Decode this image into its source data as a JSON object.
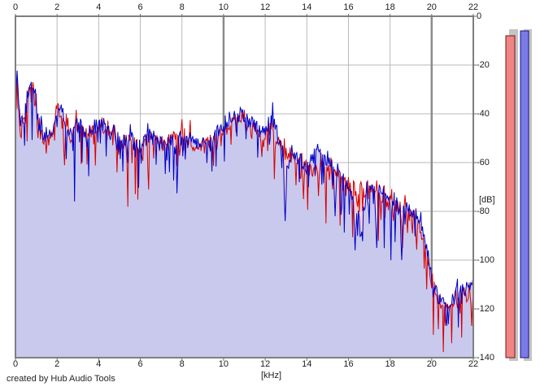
{
  "app": {
    "credit": "created by Hub Audio Tools"
  },
  "colors": {
    "background": "#ffffff",
    "grid_minor": "#b9b9b9",
    "grid_major": "#8b8b8b",
    "plot_border": "#7f7f7f",
    "tick_stub": "#6f6f6f",
    "text": "#1c1c1c",
    "red_line": "#d90000",
    "red_fill": "#f3cdd0",
    "blue_line": "#0000c8",
    "blue_fill": "#c9c9ed",
    "meter_track": "#c4c4c4",
    "meter_red_fill": "#ef8585",
    "meter_red_border": "#7a1212",
    "meter_blue_fill": "#7b7be8",
    "meter_blue_border": "#15157d"
  },
  "chart_data": {
    "type": "area",
    "title": "",
    "xlabel": "[kHz]",
    "ylabel": "[dB]",
    "xlim": [
      0,
      22
    ],
    "ylim": [
      -140,
      0
    ],
    "grid": true,
    "x_ticks": [
      0,
      2,
      4,
      6,
      8,
      10,
      12,
      14,
      16,
      18,
      20,
      22
    ],
    "x_major_gridlines": [
      10,
      20
    ],
    "y_ticks": [
      0,
      -20,
      -40,
      -60,
      -80,
      -100,
      -120,
      -140
    ],
    "legend_position": "none",
    "series": [
      {
        "name": "red-spectrum-trace",
        "color_key": "red",
        "envelope_khz_db": [
          [
            0,
            -42
          ],
          [
            0.08,
            -27
          ],
          [
            0.25,
            -48
          ],
          [
            0.45,
            -42
          ],
          [
            0.6,
            -36
          ],
          [
            0.75,
            -30
          ],
          [
            0.9,
            -33
          ],
          [
            1.1,
            -46
          ],
          [
            1.4,
            -50
          ],
          [
            1.7,
            -49
          ],
          [
            2.0,
            -38
          ],
          [
            2.2,
            -42
          ],
          [
            2.45,
            -48
          ],
          [
            2.7,
            -50
          ],
          [
            3.0,
            -44
          ],
          [
            3.3,
            -49
          ],
          [
            3.7,
            -47
          ],
          [
            4.1,
            -45
          ],
          [
            4.5,
            -49
          ],
          [
            5.0,
            -52
          ],
          [
            5.5,
            -51
          ],
          [
            6.0,
            -53
          ],
          [
            6.5,
            -50
          ],
          [
            7.0,
            -53
          ],
          [
            7.5,
            -51
          ],
          [
            8.0,
            -48
          ],
          [
            8.5,
            -52
          ],
          [
            9.0,
            -53
          ],
          [
            9.5,
            -51
          ],
          [
            9.9,
            -48
          ],
          [
            10.3,
            -45
          ],
          [
            10.6,
            -43
          ],
          [
            11.0,
            -44
          ],
          [
            11.5,
            -47
          ],
          [
            12.0,
            -49
          ],
          [
            12.35,
            -46
          ],
          [
            12.7,
            -53
          ],
          [
            13.0,
            -57
          ],
          [
            13.3,
            -58
          ],
          [
            13.6,
            -60
          ],
          [
            14.0,
            -64
          ],
          [
            14.4,
            -63
          ],
          [
            14.75,
            -62
          ],
          [
            15.1,
            -64
          ],
          [
            15.5,
            -65
          ],
          [
            15.9,
            -68
          ],
          [
            16.3,
            -71
          ],
          [
            16.6,
            -71
          ],
          [
            16.9,
            -71
          ],
          [
            17.2,
            -72
          ],
          [
            17.6,
            -74
          ],
          [
            18.0,
            -76
          ],
          [
            18.4,
            -79
          ],
          [
            18.8,
            -80
          ],
          [
            19.2,
            -83
          ],
          [
            19.5,
            -88
          ],
          [
            19.75,
            -97
          ],
          [
            20.0,
            -109
          ],
          [
            20.3,
            -116
          ],
          [
            20.6,
            -120
          ],
          [
            20.9,
            -119
          ],
          [
            21.2,
            -115
          ],
          [
            21.5,
            -112
          ],
          [
            21.8,
            -116
          ],
          [
            22,
            -110
          ]
        ],
        "deep_dips_khz_db": [
          [
            13.85,
            -75
          ],
          [
            18.6,
            -95
          ],
          [
            21.9,
            -127
          ]
        ],
        "noise_seed": 5
      },
      {
        "name": "blue-spectrum-trace",
        "color_key": "blue",
        "envelope_khz_db": [
          [
            0,
            -40
          ],
          [
            0.08,
            -23
          ],
          [
            0.25,
            -46
          ],
          [
            0.45,
            -40
          ],
          [
            0.6,
            -33
          ],
          [
            0.75,
            -26
          ],
          [
            0.9,
            -31
          ],
          [
            1.1,
            -44
          ],
          [
            1.4,
            -49
          ],
          [
            1.7,
            -47
          ],
          [
            1.95,
            -44
          ],
          [
            2.2,
            -37
          ],
          [
            2.45,
            -47
          ],
          [
            2.7,
            -49
          ],
          [
            3.0,
            -43
          ],
          [
            3.3,
            -48
          ],
          [
            3.7,
            -46
          ],
          [
            4.1,
            -43
          ],
          [
            4.5,
            -48
          ],
          [
            5.0,
            -51
          ],
          [
            5.5,
            -50
          ],
          [
            6.0,
            -52
          ],
          [
            6.5,
            -49
          ],
          [
            7.0,
            -52
          ],
          [
            7.5,
            -51
          ],
          [
            8.0,
            -50
          ],
          [
            8.5,
            -52
          ],
          [
            9.0,
            -52
          ],
          [
            9.5,
            -50
          ],
          [
            9.9,
            -46
          ],
          [
            10.3,
            -42
          ],
          [
            10.6,
            -40
          ],
          [
            11.0,
            -41
          ],
          [
            11.5,
            -45
          ],
          [
            12.0,
            -47
          ],
          [
            12.35,
            -43
          ],
          [
            12.7,
            -51
          ],
          [
            13.0,
            -60
          ],
          [
            13.3,
            -60
          ],
          [
            13.6,
            -58
          ],
          [
            14.0,
            -62
          ],
          [
            14.4,
            -56
          ],
          [
            14.75,
            -56
          ],
          [
            15.1,
            -61
          ],
          [
            15.5,
            -63
          ],
          [
            15.9,
            -67
          ],
          [
            16.3,
            -80
          ],
          [
            16.6,
            -82
          ],
          [
            16.9,
            -74
          ],
          [
            17.2,
            -70
          ],
          [
            17.6,
            -72
          ],
          [
            18.0,
            -75
          ],
          [
            18.4,
            -78
          ],
          [
            18.8,
            -79
          ],
          [
            19.2,
            -81
          ],
          [
            19.5,
            -86
          ],
          [
            19.75,
            -95
          ],
          [
            20.0,
            -107
          ],
          [
            20.3,
            -115
          ],
          [
            20.6,
            -119
          ],
          [
            20.9,
            -118
          ],
          [
            21.2,
            -114
          ],
          [
            21.5,
            -111
          ],
          [
            21.8,
            -112
          ],
          [
            22,
            -107
          ]
        ],
        "deep_dips_khz_db": [
          [
            12.95,
            -84
          ],
          [
            15.35,
            -82
          ],
          [
            16.3,
            -96
          ],
          [
            16.6,
            -90
          ],
          [
            17.35,
            -95
          ],
          [
            18.55,
            -100
          ],
          [
            20.7,
            -127
          ]
        ],
        "noise_seed": 11
      }
    ],
    "noise_model": {
      "sample_step_khz": 0.04,
      "jitter_db": 3.2,
      "small_spike_probability": 0.12,
      "small_spike_depth_db": 8,
      "deep_spike_probability": 0.05,
      "deep_spike_depth_db": 18,
      "up_spike_probability": 0.1,
      "up_spike_height_db": 4.5
    },
    "level_meters": [
      {
        "name": "red-level-meter",
        "color_key": "red",
        "value_db": -8
      },
      {
        "name": "blue-level-meter",
        "color_key": "blue",
        "value_db": -6
      }
    ]
  }
}
